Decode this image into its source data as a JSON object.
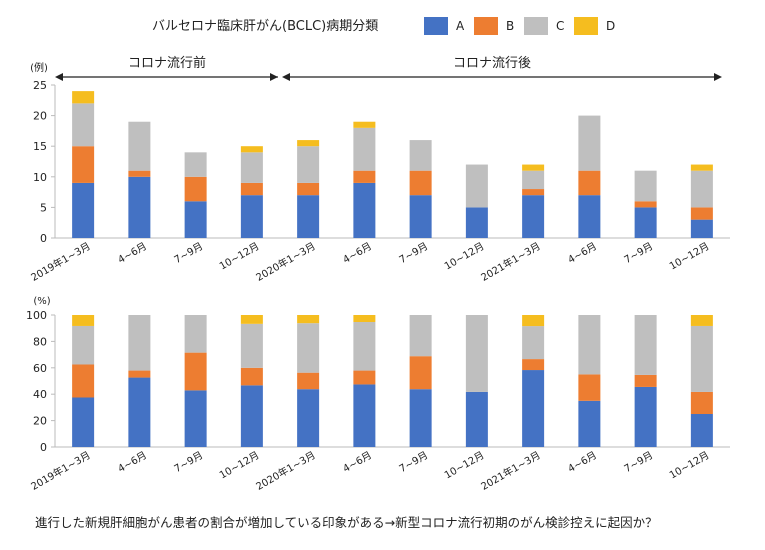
{
  "legend": {
    "title": "バルセロナ臨床肝がん(BCLC)病期分類",
    "items": [
      {
        "label": "A",
        "color": "#4472c4"
      },
      {
        "label": "B",
        "color": "#ed7d31"
      },
      {
        "label": "C",
        "color": "#bfbfbf"
      },
      {
        "label": "D",
        "color": "#f5bd1f"
      }
    ]
  },
  "periods": {
    "before": "コロナ流行前",
    "after": "コロナ流行後"
  },
  "note": "進行した新規肝細胞がん患者の割合が増加している印象がある→新型コロナ流行初期のがん検診控えに起因か？",
  "chart_data": [
    {
      "type": "bar",
      "stacked": true,
      "unit_label": "(例)",
      "ylim": [
        0,
        25
      ],
      "yticks": [
        0,
        5,
        10,
        15,
        20,
        25
      ],
      "grid": false,
      "categories": [
        "2019年1~3月",
        "4~6月",
        "7~9月",
        "10~12月",
        "2020年1~3月",
        "4~6月",
        "7~9月",
        "10~12月",
        "2021年1~3月",
        "4~6月",
        "7~9月",
        "10~12月"
      ],
      "series": [
        {
          "name": "A",
          "values": [
            9,
            10,
            6,
            7,
            7,
            9,
            7,
            5,
            7,
            7,
            5,
            3
          ]
        },
        {
          "name": "B",
          "values": [
            6,
            1,
            4,
            2,
            2,
            2,
            4,
            0,
            1,
            4,
            1,
            2
          ]
        },
        {
          "name": "C",
          "values": [
            7,
            8,
            4,
            5,
            6,
            7,
            5,
            7,
            3,
            9,
            5,
            6
          ]
        },
        {
          "name": "D",
          "values": [
            2,
            0,
            0,
            1,
            1,
            1,
            0,
            0,
            1,
            0,
            0,
            1
          ]
        }
      ]
    },
    {
      "type": "bar",
      "stacked": true,
      "unit_label": "(%)",
      "ylim": [
        0,
        100
      ],
      "yticks": [
        0,
        20,
        40,
        60,
        80,
        100
      ],
      "grid": false,
      "categories": [
        "2019年1~3月",
        "4~6月",
        "7~9月",
        "10~12月",
        "2020年1~3月",
        "4~6月",
        "7~9月",
        "10~12月",
        "2021年1~3月",
        "4~6月",
        "7~9月",
        "10~12月"
      ],
      "series": [
        {
          "name": "A",
          "values": [
            37.5,
            52.6,
            42.9,
            46.7,
            43.8,
            47.4,
            43.8,
            41.7,
            58.3,
            35.0,
            45.5,
            25.0
          ]
        },
        {
          "name": "B",
          "values": [
            25.0,
            5.3,
            28.6,
            13.3,
            12.5,
            10.5,
            25.0,
            0,
            8.3,
            20.0,
            9.1,
            16.7
          ]
        },
        {
          "name": "C",
          "values": [
            29.2,
            42.1,
            28.5,
            33.3,
            37.5,
            36.8,
            31.2,
            58.3,
            25.0,
            45.0,
            45.4,
            50.0
          ]
        },
        {
          "name": "D",
          "values": [
            8.3,
            0,
            0,
            6.7,
            6.2,
            5.3,
            0,
            0,
            8.4,
            0,
            0,
            8.3
          ]
        }
      ]
    }
  ]
}
